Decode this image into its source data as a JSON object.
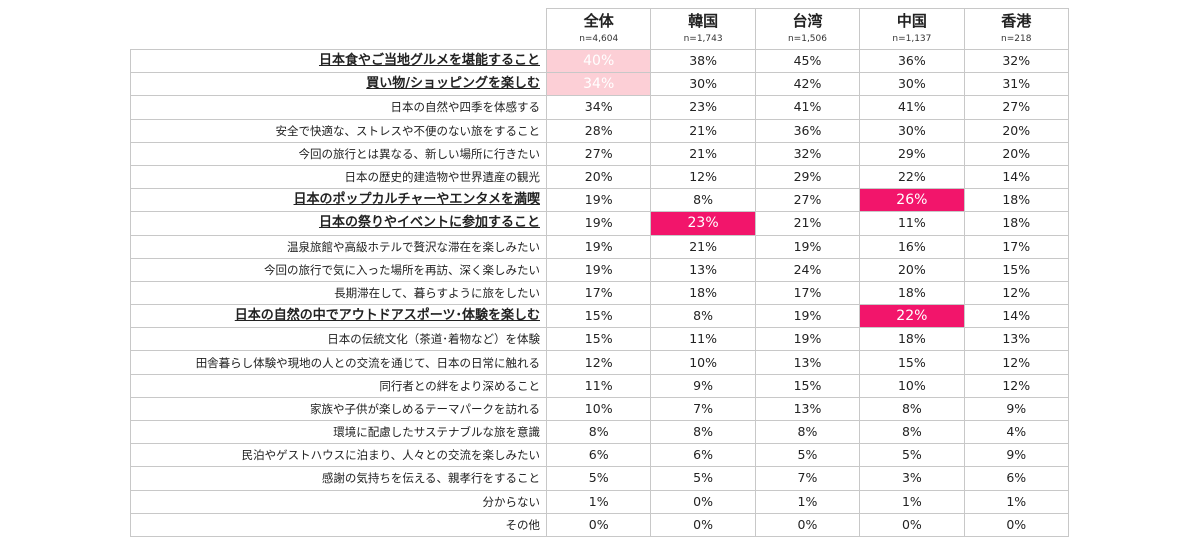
{
  "chart_data": {
    "type": "table",
    "columns": [
      {
        "name": "全体",
        "n": "n=4,604"
      },
      {
        "name": "韓国",
        "n": "n=1,743"
      },
      {
        "name": "台湾",
        "n": "n=1,506"
      },
      {
        "name": "中国",
        "n": "n=1,137"
      },
      {
        "name": "香港",
        "n": "n=218"
      }
    ],
    "rows": [
      {
        "label": "日本食やご当地グルメを堪能すること",
        "highlight": true,
        "values": [
          "40%",
          "38%",
          "45%",
          "36%",
          "32%"
        ],
        "shade": [
          "pale",
          "",
          "",
          "",
          ""
        ]
      },
      {
        "label": "買い物/ショッピングを楽しむ",
        "highlight": true,
        "values": [
          "34%",
          "30%",
          "42%",
          "30%",
          "31%"
        ],
        "shade": [
          "pale",
          "",
          "",
          "",
          ""
        ]
      },
      {
        "label": "日本の自然や四季を体感する",
        "highlight": false,
        "values": [
          "34%",
          "23%",
          "41%",
          "41%",
          "27%"
        ],
        "shade": [
          "",
          "",
          "",
          "",
          ""
        ]
      },
      {
        "label": "安全で快適な、ストレスや不便のない旅をすること",
        "highlight": false,
        "values": [
          "28%",
          "21%",
          "36%",
          "30%",
          "20%"
        ],
        "shade": [
          "",
          "",
          "",
          "",
          ""
        ]
      },
      {
        "label": "今回の旅行とは異なる、新しい場所に行きたい",
        "highlight": false,
        "values": [
          "27%",
          "21%",
          "32%",
          "29%",
          "20%"
        ],
        "shade": [
          "",
          "",
          "",
          "",
          ""
        ]
      },
      {
        "label": "日本の歴史的建造物や世界遺産の観光",
        "highlight": false,
        "values": [
          "20%",
          "12%",
          "29%",
          "22%",
          "14%"
        ],
        "shade": [
          "",
          "",
          "",
          "",
          ""
        ]
      },
      {
        "label": "日本のポップカルチャーやエンタメを満喫",
        "highlight": true,
        "values": [
          "19%",
          "8%",
          "27%",
          "26%",
          "18%"
        ],
        "shade": [
          "",
          "",
          "",
          "hot",
          ""
        ]
      },
      {
        "label": "日本の祭りやイベントに参加すること",
        "highlight": true,
        "values": [
          "19%",
          "23%",
          "21%",
          "11%",
          "18%"
        ],
        "shade": [
          "",
          "hot",
          "",
          "",
          ""
        ]
      },
      {
        "label": "温泉旅館や高級ホテルで贅沢な滞在を楽しみたい",
        "highlight": false,
        "values": [
          "19%",
          "21%",
          "19%",
          "16%",
          "17%"
        ],
        "shade": [
          "",
          "",
          "",
          "",
          ""
        ]
      },
      {
        "label": "今回の旅行で気に入った場所を再訪、深く楽しみたい",
        "highlight": false,
        "values": [
          "19%",
          "13%",
          "24%",
          "20%",
          "15%"
        ],
        "shade": [
          "",
          "",
          "",
          "",
          ""
        ]
      },
      {
        "label": "長期滞在して、暮らすように旅をしたい",
        "highlight": false,
        "values": [
          "17%",
          "18%",
          "17%",
          "18%",
          "12%"
        ],
        "shade": [
          "",
          "",
          "",
          "",
          ""
        ]
      },
      {
        "label": "日本の自然の中でアウトドアスポーツ･体験を楽しむ",
        "highlight": true,
        "values": [
          "15%",
          "8%",
          "19%",
          "22%",
          "14%"
        ],
        "shade": [
          "",
          "",
          "",
          "hot",
          ""
        ]
      },
      {
        "label": "日本の伝統文化（茶道･着物など）を体験",
        "highlight": false,
        "values": [
          "15%",
          "11%",
          "19%",
          "18%",
          "13%"
        ],
        "shade": [
          "",
          "",
          "",
          "",
          ""
        ]
      },
      {
        "label": "田舎暮らし体験や現地の人との交流を通じて、日本の日常に触れる",
        "highlight": false,
        "values": [
          "12%",
          "10%",
          "13%",
          "15%",
          "12%"
        ],
        "shade": [
          "",
          "",
          "",
          "",
          ""
        ]
      },
      {
        "label": "同行者との絆をより深めること",
        "highlight": false,
        "values": [
          "11%",
          "9%",
          "15%",
          "10%",
          "12%"
        ],
        "shade": [
          "",
          "",
          "",
          "",
          ""
        ]
      },
      {
        "label": "家族や子供が楽しめるテーマパークを訪れる",
        "highlight": false,
        "values": [
          "10%",
          "7%",
          "13%",
          "8%",
          "9%"
        ],
        "shade": [
          "",
          "",
          "",
          "",
          ""
        ]
      },
      {
        "label": "環境に配慮したサステナブルな旅を意識",
        "highlight": false,
        "values": [
          "8%",
          "8%",
          "8%",
          "8%",
          "4%"
        ],
        "shade": [
          "",
          "",
          "",
          "",
          ""
        ]
      },
      {
        "label": "民泊やゲストハウスに泊まり、人々との交流を楽しみたい",
        "highlight": false,
        "values": [
          "6%",
          "6%",
          "5%",
          "5%",
          "9%"
        ],
        "shade": [
          "",
          "",
          "",
          "",
          ""
        ]
      },
      {
        "label": "感謝の気持ちを伝える、親孝行をすること",
        "highlight": false,
        "values": [
          "5%",
          "5%",
          "7%",
          "3%",
          "6%"
        ],
        "shade": [
          "",
          "",
          "",
          "",
          ""
        ]
      },
      {
        "label": "分からない",
        "highlight": false,
        "values": [
          "1%",
          "0%",
          "1%",
          "1%",
          "1%"
        ],
        "shade": [
          "",
          "",
          "",
          "",
          ""
        ]
      },
      {
        "label": "その他",
        "highlight": false,
        "values": [
          "0%",
          "0%",
          "0%",
          "0%",
          "0%"
        ],
        "shade": [
          "",
          "",
          "",
          "",
          ""
        ]
      }
    ],
    "colors": {
      "pale": "#fccfd6",
      "hot": "#f2156b",
      "border": "#c8c8c8"
    }
  }
}
